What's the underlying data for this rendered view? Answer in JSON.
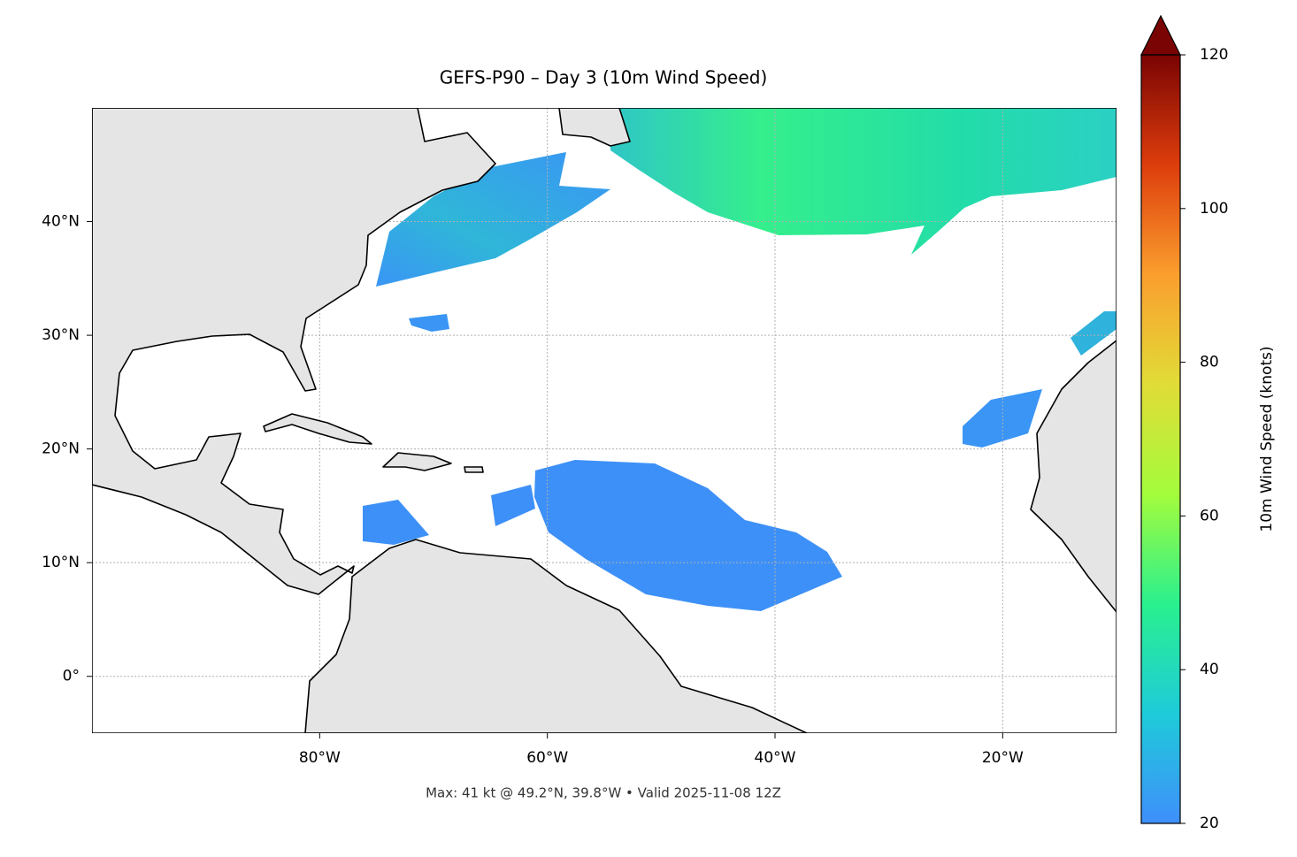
{
  "chart_data": {
    "type": "map",
    "title": "GEFS-P90 – Day 3 (10m Wind Speed)",
    "footer": "Max: 41 kt @ 49.2°N, 39.8°W • Valid 2025-11-08 12Z",
    "xlim": [
      -100,
      -10
    ],
    "ylim": [
      -5,
      50
    ],
    "xticks": [
      {
        "value": -80,
        "label": "80°W"
      },
      {
        "value": -60,
        "label": "60°W"
      },
      {
        "value": -40,
        "label": "40°W"
      },
      {
        "value": -20,
        "label": "20°W"
      }
    ],
    "yticks": [
      {
        "value": 0,
        "label": "0°"
      },
      {
        "value": 10,
        "label": "10°N"
      },
      {
        "value": 20,
        "label": "20°N"
      },
      {
        "value": 30,
        "label": "30°N"
      },
      {
        "value": 40,
        "label": "40°N"
      }
    ],
    "grid": true,
    "colorbar": {
      "label": "10m Wind Speed (knots)",
      "lim": [
        20,
        120
      ],
      "ticks": [
        20,
        40,
        60,
        80,
        100,
        120
      ],
      "extend": "max",
      "colormap": [
        "#3f8ffb",
        "#1ecbd9",
        "#2af08e",
        "#a4fc3c",
        "#e1dc37",
        "#fb9e2e",
        "#dd3d0c",
        "#7a0403"
      ]
    }
  }
}
